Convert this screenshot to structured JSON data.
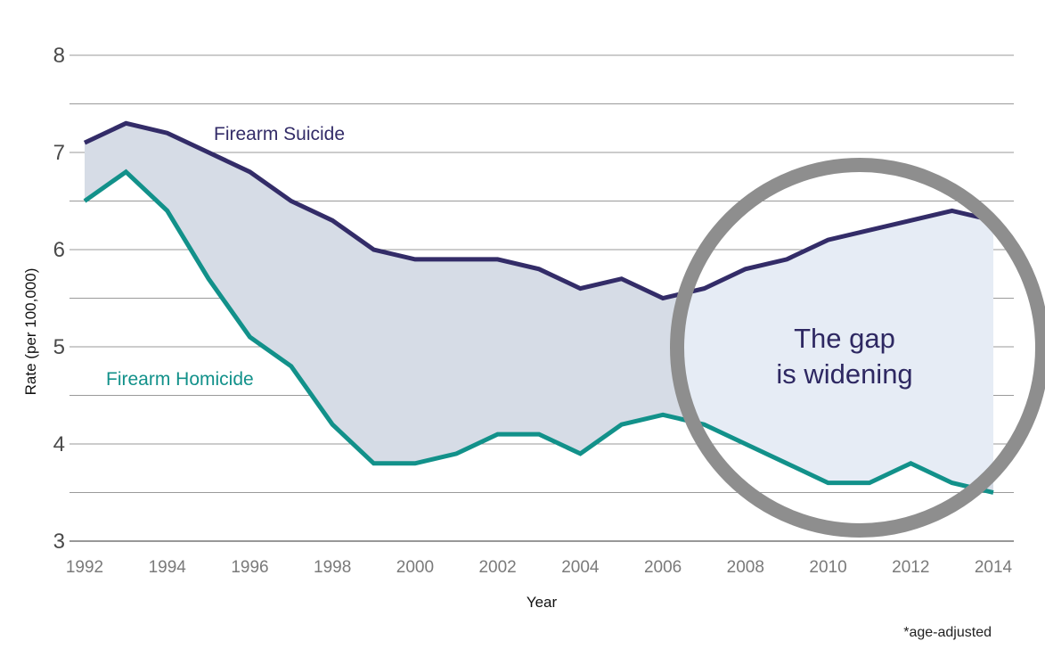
{
  "colors": {
    "suicide": "#332c68",
    "homicide": "#12918a",
    "gap_fill": "#d6dce6",
    "magnifier_fill": "#e6ecf5",
    "magnifier_ring": "#8e8e8e",
    "grid": "#9a9a9a"
  },
  "chart_data": {
    "type": "line",
    "x": [
      1992,
      1993,
      1994,
      1995,
      1996,
      1997,
      1998,
      1999,
      2000,
      2001,
      2002,
      2003,
      2004,
      2005,
      2006,
      2007,
      2008,
      2009,
      2010,
      2011,
      2012,
      2013,
      2014
    ],
    "series": [
      {
        "name": "Firearm Suicide",
        "values": [
          7.1,
          7.3,
          7.2,
          7.0,
          6.8,
          6.5,
          6.3,
          6.0,
          5.9,
          5.9,
          5.9,
          5.8,
          5.6,
          5.7,
          5.5,
          5.6,
          5.8,
          5.9,
          6.1,
          6.2,
          6.3,
          6.4,
          6.3
        ]
      },
      {
        "name": "Firearm Homicide",
        "values": [
          6.5,
          6.8,
          6.4,
          5.7,
          5.1,
          4.8,
          4.2,
          3.8,
          3.8,
          3.9,
          4.1,
          4.1,
          3.9,
          4.2,
          4.3,
          4.2,
          4.0,
          3.8,
          3.6,
          3.6,
          3.8,
          3.6,
          3.5
        ]
      }
    ],
    "xlabel": "Year",
    "ylabel": "Rate (per 100,000)",
    "ylim": [
      3,
      8
    ],
    "xlim": [
      1992,
      2014
    ],
    "y_ticks": [
      "3",
      "4",
      "5",
      "6",
      "7",
      "8"
    ],
    "x_ticks": [
      "1992",
      "1994",
      "1996",
      "1998",
      "2000",
      "2002",
      "2004",
      "2006",
      "2008",
      "2010",
      "2012",
      "2014"
    ],
    "grid": true,
    "annotations": {
      "callout_line1": "The gap",
      "callout_line2": "is widening"
    },
    "footnote": "*age-adjusted"
  }
}
